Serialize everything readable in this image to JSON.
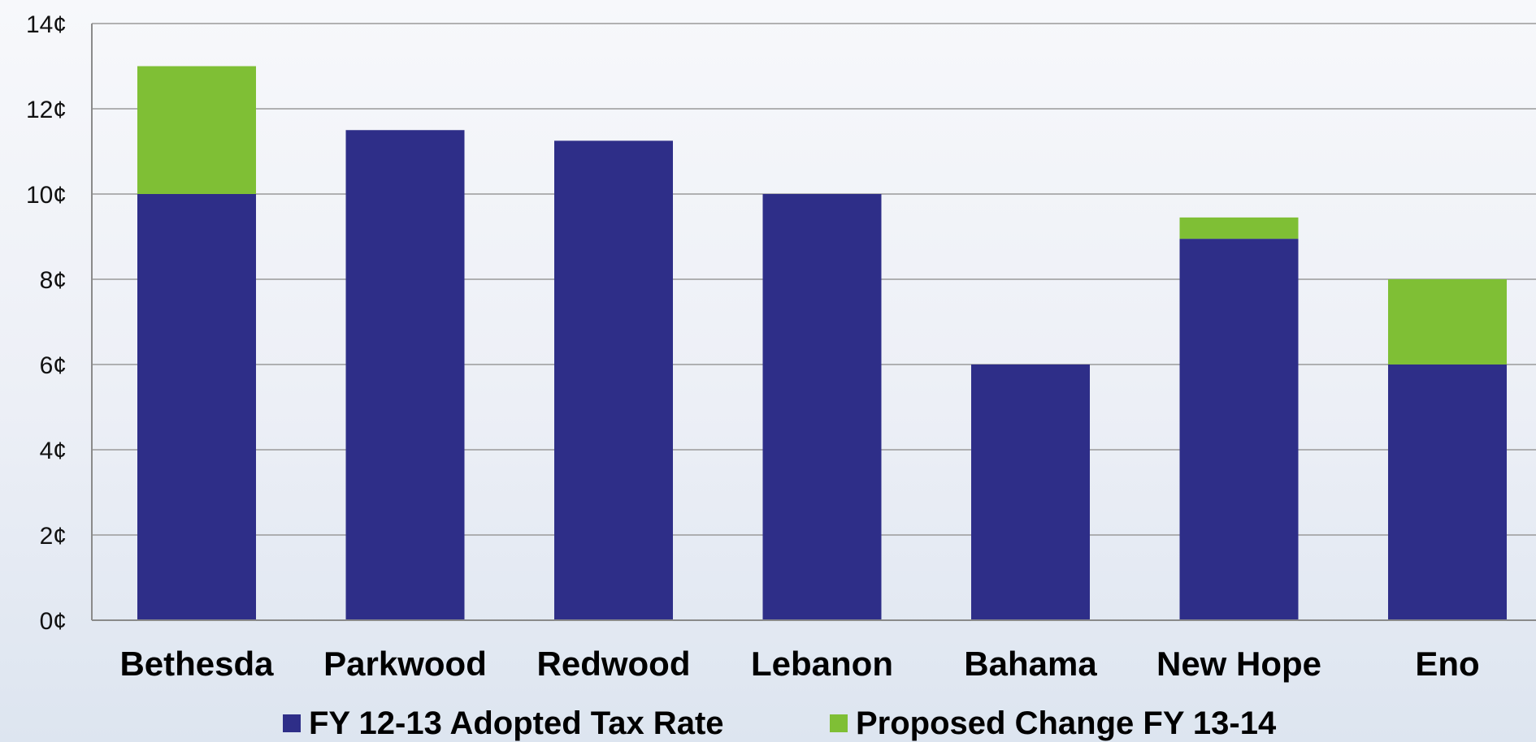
{
  "chart_data": {
    "type": "bar",
    "stacked": true,
    "categories": [
      "Bethesda",
      "Parkwood",
      "Redwood",
      "Lebanon",
      "Bahama",
      "New Hope",
      "Eno"
    ],
    "series": [
      {
        "name": "FY 12-13 Adopted Tax Rate",
        "color": "#2e2e88",
        "values": [
          10,
          11.5,
          11.25,
          10,
          6,
          8.95,
          6
        ]
      },
      {
        "name": "Proposed Change FY 13-14",
        "color": "#7fbf35",
        "values": [
          3,
          0,
          0,
          0,
          0,
          0.5,
          2
        ]
      }
    ],
    "ylim": [
      0,
      14
    ],
    "yticks": [
      0,
      2,
      4,
      6,
      8,
      10,
      12,
      14
    ],
    "ytick_labels": [
      "0¢",
      "2¢",
      "4¢",
      "6¢",
      "8¢",
      "10¢",
      "12¢",
      "14¢"
    ],
    "grid": true,
    "legend_position": "bottom"
  }
}
